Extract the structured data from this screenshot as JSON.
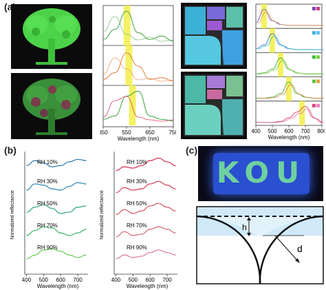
{
  "panels": {
    "a": {
      "label": "(a)",
      "tree_chart": {
        "xlabel": "Wavelength (nm)",
        "ticks": [
          "450",
          "550",
          "650",
          "750"
        ],
        "xlim": [
          450,
          750
        ]
      },
      "pattern_chart": {
        "xlabel": "Wavelength (nm)",
        "ticks": [
          "400",
          "500",
          "600",
          "700",
          "800"
        ],
        "xlim": [
          400,
          800
        ]
      }
    },
    "b": {
      "label": "(b)",
      "left_chart": {
        "ylabel": "Normalized reflectance",
        "xlabel": "Wavelength (nm)",
        "ticks": [
          "400",
          "500",
          "600",
          "700"
        ],
        "labels": [
          "RH 10%",
          "RH 30%",
          "RH 50%",
          "RH 70%",
          "RH 90%"
        ]
      },
      "right_chart": {
        "ylabel": "Normalized reflectance",
        "xlabel": "Wavelength (nm)",
        "ticks": [
          "400",
          "500",
          "600",
          "700"
        ],
        "labels": [
          "RH 10%",
          "RH 30%",
          "RH 50%",
          "RH 70%",
          "RH 90%"
        ]
      }
    },
    "c": {
      "label": "(c)",
      "photo_text": "KOU",
      "diagram": {
        "h_label": "h",
        "d_label": "d"
      }
    }
  },
  "colors": {
    "highlight": "#f2ee4a",
    "b_left_series": [
      "#3a7fb0",
      "#3b8eb6",
      "#3aa58e",
      "#49b86d",
      "#6fcf5a"
    ],
    "b_right_series": [
      "#d8395a",
      "#d94a5e",
      "#d95f66",
      "#d6707a",
      "#d9849a"
    ],
    "water": "#cfe9f8"
  },
  "chart_data": [
    {
      "type": "line",
      "xlabel": "Wavelength (nm)",
      "xlim": [
        450,
        750
      ],
      "x": [
        450,
        500,
        550,
        600,
        650,
        700,
        750
      ],
      "series": [
        {
          "values": [
            0.1,
            0.4,
            0.95,
            0.3,
            0.1,
            0.2,
            0.05
          ]
        },
        {
          "values": [
            0.1,
            0.3,
            0.9,
            0.5,
            0.1,
            0.15,
            0.05
          ]
        },
        {
          "values": [
            0.1,
            0.2,
            0.8,
            0.95,
            0.2,
            0.1,
            0.05
          ]
        }
      ]
    },
    {
      "type": "line",
      "xlabel": "Wavelength (nm)",
      "xlim": [
        400,
        800
      ],
      "x": [
        400,
        450,
        500,
        550,
        600,
        650,
        700,
        750,
        800
      ],
      "series": [
        {
          "values": [
            0.2,
            0.9,
            0.3,
            0.1,
            0.05,
            0.05,
            0.05,
            0.05,
            0.05
          ]
        },
        {
          "values": [
            0.1,
            0.3,
            0.9,
            0.3,
            0.1,
            0.05,
            0.05,
            0.05,
            0.05
          ]
        },
        {
          "values": [
            0.05,
            0.1,
            0.3,
            0.9,
            0.3,
            0.1,
            0.05,
            0.05,
            0.05
          ]
        },
        {
          "values": [
            0.05,
            0.05,
            0.1,
            0.3,
            0.9,
            0.3,
            0.1,
            0.05,
            0.05
          ]
        },
        {
          "values": [
            0.05,
            0.05,
            0.05,
            0.1,
            0.3,
            0.6,
            0.9,
            0.3,
            0.05
          ]
        }
      ]
    },
    {
      "type": "line",
      "xlabel": "Wavelength (nm)",
      "ylabel": "Normalized reflectance",
      "x": [
        400,
        450,
        500,
        550,
        600,
        650,
        700,
        750
      ],
      "series": [
        {
          "name": "RH 10%",
          "values": [
            0.6,
            0.8,
            0.7,
            0.55,
            0.6,
            0.75,
            0.85,
            0.8
          ]
        },
        {
          "name": "RH 30%",
          "values": [
            0.5,
            0.75,
            0.7,
            0.55,
            0.5,
            0.65,
            0.8,
            0.75
          ]
        },
        {
          "name": "RH 50%",
          "values": [
            0.5,
            0.7,
            0.8,
            0.65,
            0.45,
            0.5,
            0.7,
            0.75
          ]
        },
        {
          "name": "RH 70%",
          "values": [
            0.45,
            0.65,
            0.8,
            0.75,
            0.55,
            0.45,
            0.55,
            0.7
          ]
        },
        {
          "name": "RH 90%",
          "values": [
            0.4,
            0.55,
            0.75,
            0.8,
            0.7,
            0.55,
            0.45,
            0.55
          ]
        }
      ]
    },
    {
      "type": "line",
      "xlabel": "Wavelength (nm)",
      "ylabel": "Normalized reflectance",
      "x": [
        400,
        450,
        500,
        550,
        600,
        650,
        700,
        750
      ],
      "series": [
        {
          "name": "RH 10%",
          "values": [
            0.4,
            0.55,
            0.5,
            0.6,
            0.8,
            0.9,
            0.75,
            0.6
          ]
        },
        {
          "name": "RH 30%",
          "values": [
            0.4,
            0.6,
            0.5,
            0.55,
            0.75,
            0.85,
            0.7,
            0.55
          ]
        },
        {
          "name": "RH 50%",
          "values": [
            0.4,
            0.6,
            0.45,
            0.55,
            0.75,
            0.85,
            0.7,
            0.55
          ]
        },
        {
          "name": "RH 70%",
          "values": [
            0.4,
            0.6,
            0.45,
            0.5,
            0.7,
            0.8,
            0.7,
            0.55
          ]
        },
        {
          "name": "RH 90%",
          "values": [
            0.4,
            0.55,
            0.45,
            0.5,
            0.65,
            0.75,
            0.65,
            0.55
          ]
        }
      ]
    }
  ]
}
